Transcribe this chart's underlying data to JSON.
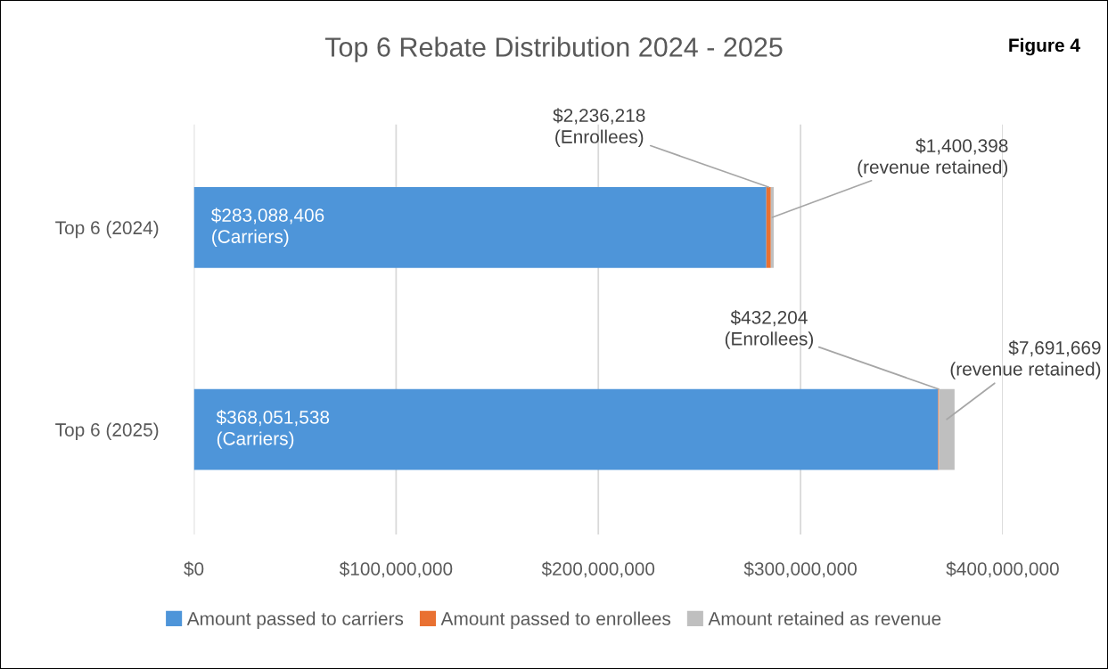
{
  "chart_data": {
    "type": "bar",
    "orientation": "horizontal",
    "stacked": true,
    "title": "Top 6 Rebate Distribution 2024 - 2025",
    "annotations": [
      "Figure 4"
    ],
    "categories": [
      "Top 6 (2024)",
      "Top 6 (2025)"
    ],
    "series": [
      {
        "name": "Amount passed to carriers",
        "color": "#4e95d9",
        "values": [
          283088406,
          368051538
        ],
        "value_labels": [
          "$283,088,406\n(Carriers)",
          "$368,051,538\n(Carriers)"
        ]
      },
      {
        "name": "Amount passed to enrollees",
        "color": "#e97132",
        "values": [
          2236218,
          432204
        ],
        "value_labels": [
          "$2,236,218\n(Enrollees)",
          "$432,204\n(Enrollees)"
        ]
      },
      {
        "name": "Amount retained as revenue",
        "color": "#bfbfbf",
        "values": [
          1400398,
          7691669
        ],
        "value_labels": [
          "$1,400,398\n(revenue retained)",
          "$7,691,669\n(revenue retained)"
        ]
      }
    ],
    "xlim": [
      0,
      400000000
    ],
    "xticks": [
      {
        "value": 0,
        "label": "$0"
      },
      {
        "value": 100000000,
        "label": "$100,000,000"
      },
      {
        "value": 200000000,
        "label": "$200,000,000"
      },
      {
        "value": 300000000,
        "label": "$300,000,000"
      },
      {
        "value": 400000000,
        "label": "$400,000,000"
      }
    ],
    "grid": "x",
    "legend": "bottom"
  }
}
